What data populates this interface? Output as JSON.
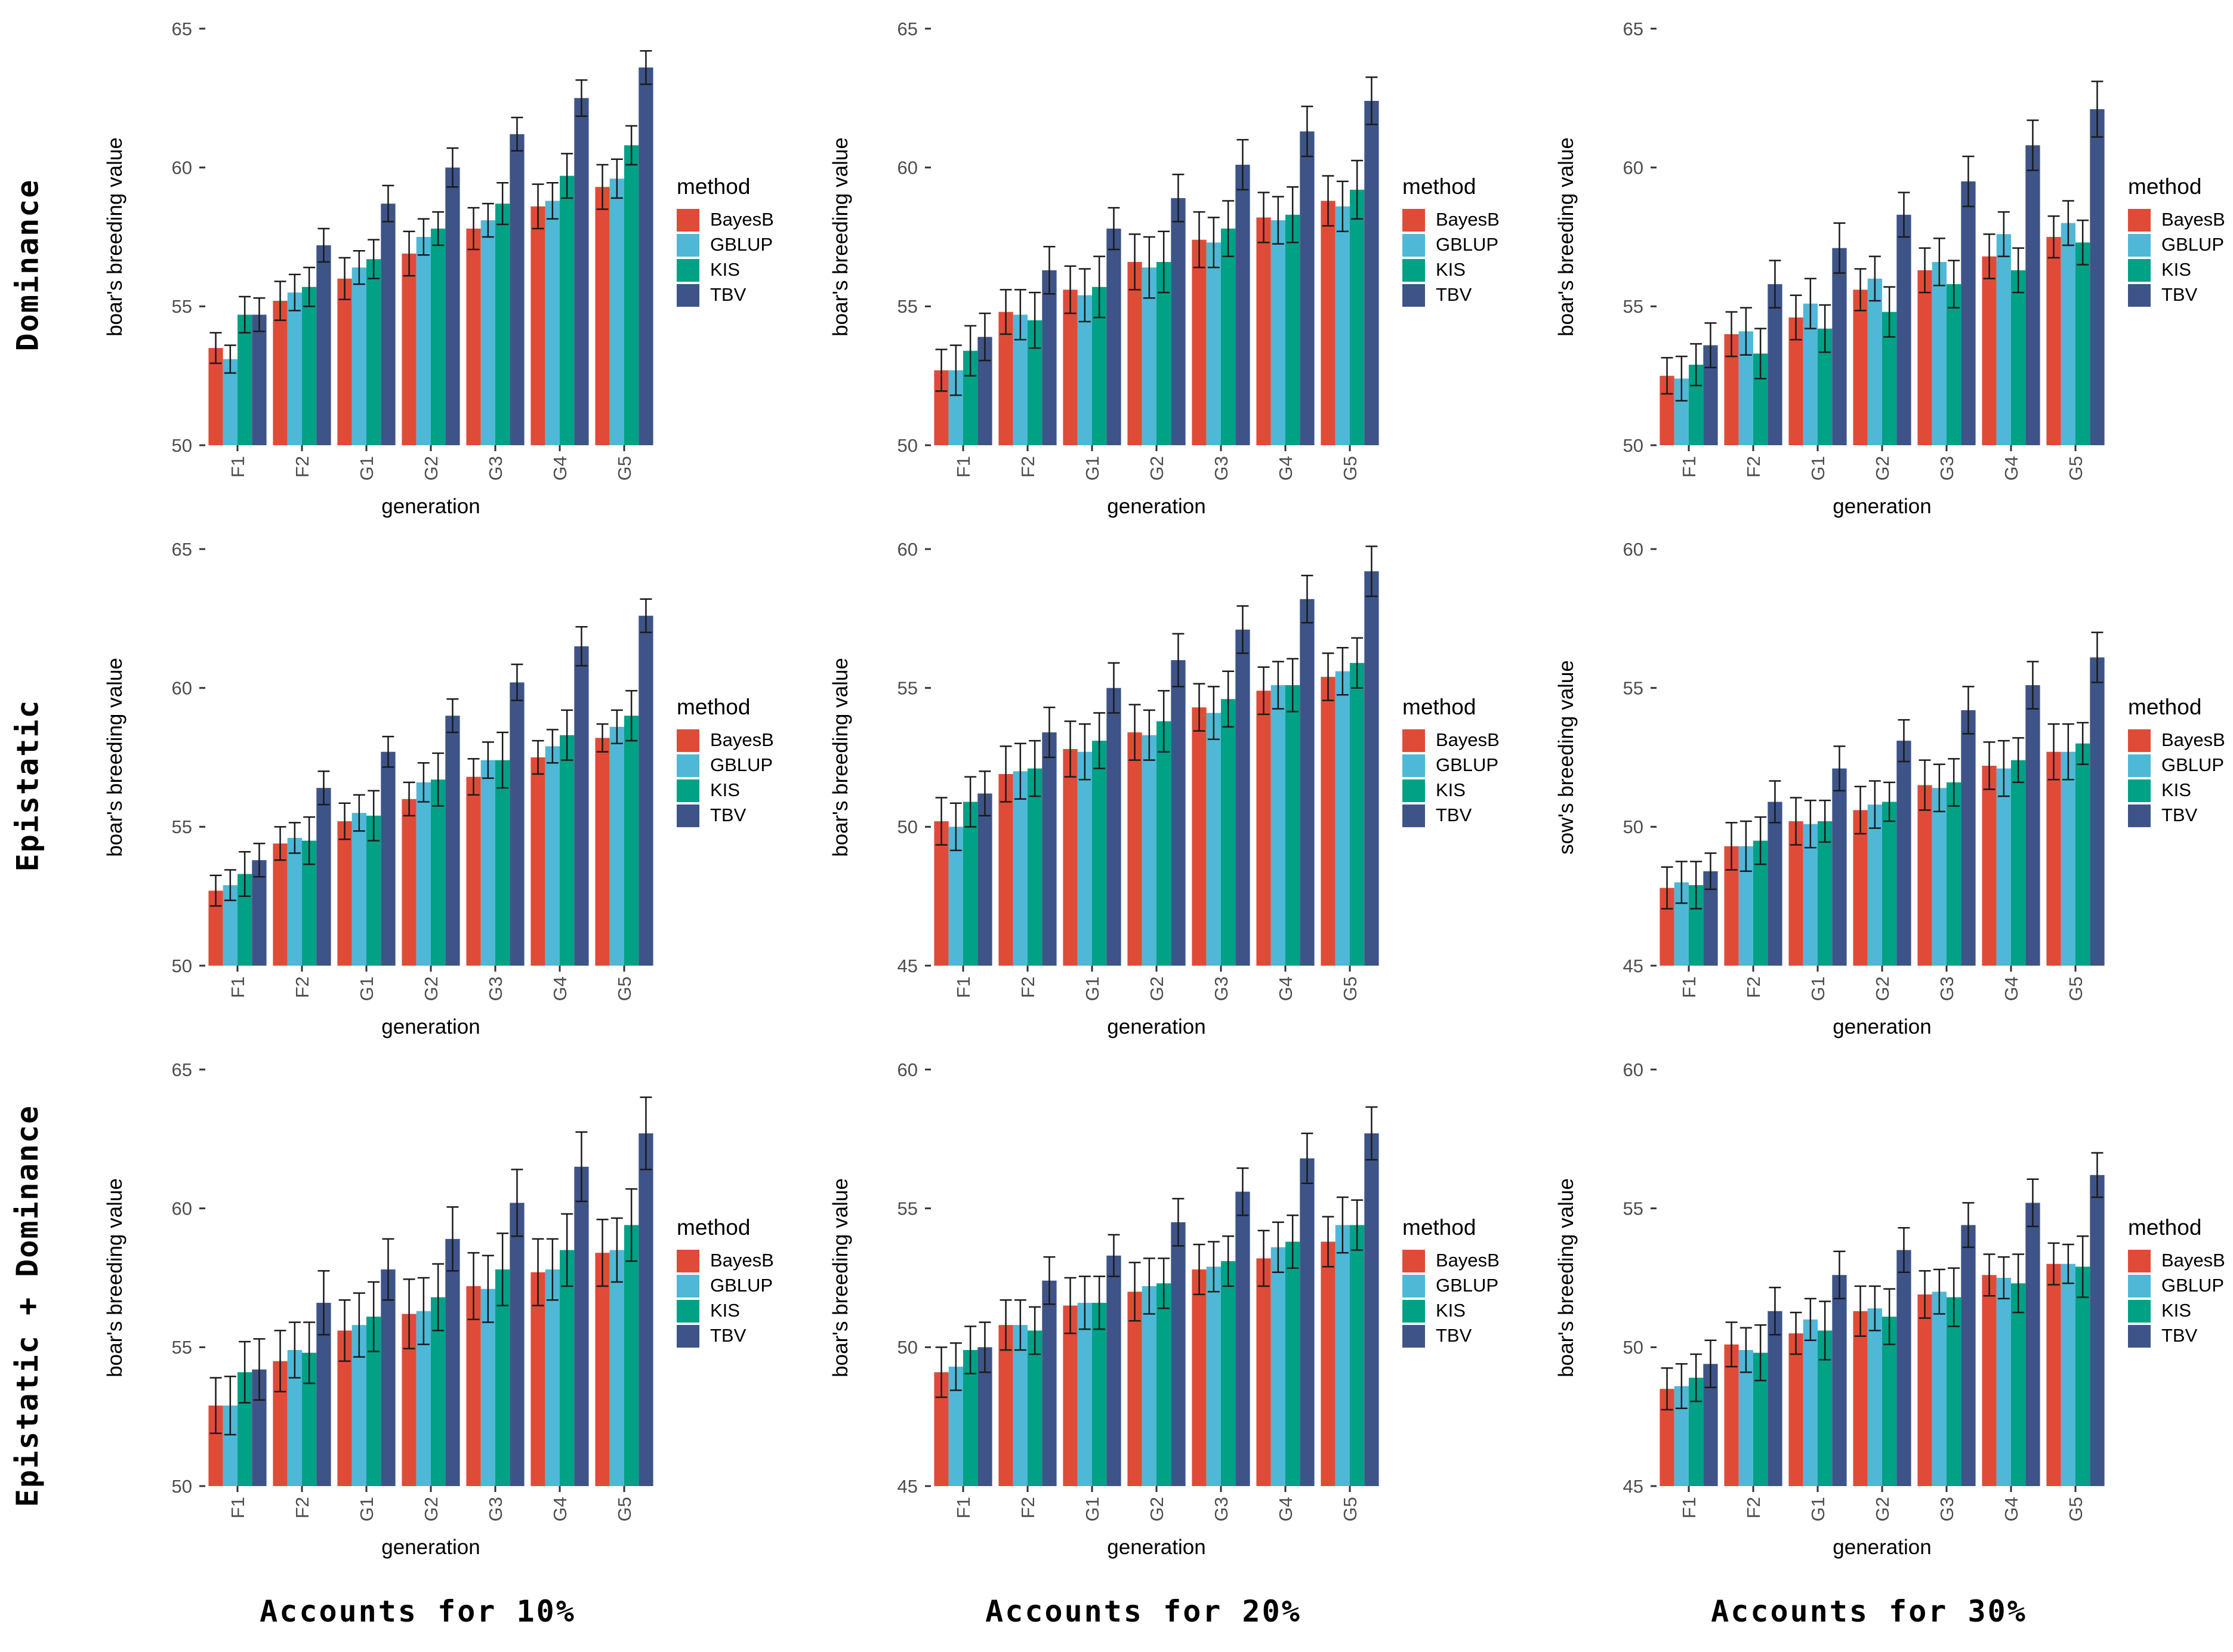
{
  "chart_data": {
    "type": "bar",
    "categories": [
      "F1",
      "F2",
      "G1",
      "G2",
      "G3",
      "G4",
      "G5"
    ],
    "xlabel": "generation",
    "rows": [
      {
        "label": "Dominance"
      },
      {
        "label": "Epistatic"
      },
      {
        "label": "Epistatic + Dominance"
      }
    ],
    "columns": [
      {
        "caption": "Accounts for 10%"
      },
      {
        "caption": "Accounts for 20%"
      },
      {
        "caption": "Accounts for 30%"
      }
    ],
    "legend": {
      "title": "method",
      "position": "right",
      "items": [
        {
          "name": "BayesB",
          "color": "#E04B38"
        },
        {
          "name": "GBLUP",
          "color": "#4FB8D6"
        },
        {
          "name": "KIS",
          "color": "#00A185"
        },
        {
          "name": "TBV",
          "color": "#3E5488"
        }
      ]
    },
    "style": {
      "grid": "off",
      "tick_label_color": "#4D4D4D",
      "tick_mark_color": "#333333",
      "axis_title_color": "#000000",
      "errorbar_color": "#1A1A1A",
      "panel_background": "#FFFFFF"
    },
    "panels": [
      {
        "row": "Dominance",
        "column": "Accounts for 10%",
        "ylabel": "boar's breeding value",
        "ylim": [
          50,
          65
        ],
        "yticks": [
          50,
          55,
          60,
          65
        ],
        "series": [
          {
            "name": "BayesB",
            "values": [
              53.5,
              55.2,
              56.0,
              56.9,
              57.8,
              58.6,
              59.3
            ],
            "errors": [
              0.55,
              0.7,
              0.75,
              0.8,
              0.75,
              0.8,
              0.8
            ]
          },
          {
            "name": "GBLUP",
            "values": [
              53.1,
              55.5,
              56.4,
              57.5,
              58.1,
              58.8,
              59.6
            ],
            "errors": [
              0.5,
              0.65,
              0.6,
              0.65,
              0.6,
              0.65,
              0.7
            ]
          },
          {
            "name": "KIS",
            "values": [
              54.7,
              55.7,
              56.7,
              57.8,
              58.7,
              59.7,
              60.8
            ],
            "errors": [
              0.65,
              0.7,
              0.7,
              0.6,
              0.75,
              0.8,
              0.7
            ]
          },
          {
            "name": "TBV",
            "values": [
              54.7,
              57.2,
              58.7,
              60.0,
              61.2,
              62.5,
              63.6
            ],
            "errors": [
              0.6,
              0.6,
              0.65,
              0.7,
              0.6,
              0.65,
              0.6
            ]
          }
        ]
      },
      {
        "row": "Dominance",
        "column": "Accounts for 20%",
        "ylabel": "boar's breeding value",
        "ylim": [
          50,
          65
        ],
        "yticks": [
          50,
          55,
          60,
          65
        ],
        "series": [
          {
            "name": "BayesB",
            "values": [
              52.7,
              54.8,
              55.6,
              56.6,
              57.4,
              58.2,
              58.8
            ],
            "errors": [
              0.75,
              0.8,
              0.85,
              1.0,
              1.0,
              0.9,
              0.9
            ]
          },
          {
            "name": "GBLUP",
            "values": [
              52.7,
              54.7,
              55.4,
              56.4,
              57.3,
              58.1,
              58.6
            ],
            "errors": [
              0.9,
              0.9,
              0.95,
              1.1,
              0.9,
              0.85,
              0.9
            ]
          },
          {
            "name": "KIS",
            "values": [
              53.4,
              54.5,
              55.7,
              56.6,
              57.8,
              58.3,
              59.2
            ],
            "errors": [
              0.9,
              1.0,
              1.1,
              1.1,
              1.0,
              1.0,
              1.05
            ]
          },
          {
            "name": "TBV",
            "values": [
              53.9,
              56.3,
              57.8,
              58.9,
              60.1,
              61.3,
              62.4
            ],
            "errors": [
              0.85,
              0.85,
              0.75,
              0.85,
              0.9,
              0.9,
              0.85
            ]
          }
        ]
      },
      {
        "row": "Dominance",
        "column": "Accounts for 30%",
        "ylabel": "boar's breeding value",
        "ylim": [
          50,
          65
        ],
        "yticks": [
          50,
          55,
          60,
          65
        ],
        "series": [
          {
            "name": "BayesB",
            "values": [
              52.5,
              54.0,
              54.6,
              55.6,
              56.3,
              56.8,
              57.5
            ],
            "errors": [
              0.65,
              0.8,
              0.8,
              0.75,
              0.8,
              0.8,
              0.75
            ]
          },
          {
            "name": "GBLUP",
            "values": [
              52.4,
              54.1,
              55.1,
              56.0,
              56.6,
              57.6,
              58.0
            ],
            "errors": [
              0.8,
              0.85,
              0.9,
              0.8,
              0.85,
              0.8,
              0.8
            ]
          },
          {
            "name": "KIS",
            "values": [
              52.9,
              53.3,
              54.2,
              54.8,
              55.8,
              56.3,
              57.3
            ],
            "errors": [
              0.75,
              0.9,
              0.85,
              0.9,
              0.85,
              0.8,
              0.8
            ]
          },
          {
            "name": "TBV",
            "values": [
              53.6,
              55.8,
              57.1,
              58.3,
              59.5,
              60.8,
              62.1
            ],
            "errors": [
              0.8,
              0.85,
              0.9,
              0.8,
              0.9,
              0.9,
              1.0
            ]
          }
        ]
      },
      {
        "row": "Epistatic",
        "column": "Accounts for 10%",
        "ylabel": "boar's breeding value",
        "ylim": [
          50,
          65
        ],
        "yticks": [
          50,
          55,
          60,
          65
        ],
        "series": [
          {
            "name": "BayesB",
            "values": [
              52.7,
              54.4,
              55.2,
              56.0,
              56.8,
              57.5,
              58.2
            ],
            "errors": [
              0.55,
              0.6,
              0.65,
              0.6,
              0.65,
              0.6,
              0.5
            ]
          },
          {
            "name": "GBLUP",
            "values": [
              52.9,
              54.6,
              55.5,
              56.6,
              57.4,
              57.9,
              58.6
            ],
            "errors": [
              0.55,
              0.55,
              0.65,
              0.7,
              0.65,
              0.6,
              0.6
            ]
          },
          {
            "name": "KIS",
            "values": [
              53.3,
              54.5,
              55.4,
              56.7,
              57.4,
              58.3,
              59.0
            ],
            "errors": [
              0.8,
              0.85,
              0.9,
              0.95,
              1.0,
              0.9,
              0.9
            ]
          },
          {
            "name": "TBV",
            "values": [
              53.8,
              56.4,
              57.7,
              59.0,
              60.2,
              61.5,
              62.6
            ],
            "errors": [
              0.6,
              0.6,
              0.55,
              0.6,
              0.65,
              0.7,
              0.6
            ]
          }
        ]
      },
      {
        "row": "Epistatic",
        "column": "Accounts for 20%",
        "ylabel": "boar's breeding value",
        "ylim": [
          45,
          60
        ],
        "yticks": [
          45,
          50,
          55,
          60
        ],
        "series": [
          {
            "name": "BayesB",
            "values": [
              50.2,
              51.9,
              52.8,
              53.4,
              54.3,
              54.9,
              55.4
            ],
            "errors": [
              0.85,
              1.0,
              1.0,
              1.0,
              0.85,
              0.85,
              0.85
            ]
          },
          {
            "name": "GBLUP",
            "values": [
              50.0,
              52.0,
              52.7,
              53.3,
              54.1,
              55.1,
              55.6
            ],
            "errors": [
              0.85,
              1.0,
              1.0,
              0.9,
              0.95,
              0.85,
              0.85
            ]
          },
          {
            "name": "KIS",
            "values": [
              50.9,
              52.1,
              53.1,
              53.8,
              54.6,
              55.1,
              55.9
            ],
            "errors": [
              0.9,
              1.0,
              1.0,
              1.1,
              1.0,
              0.95,
              0.9
            ]
          },
          {
            "name": "TBV",
            "values": [
              51.2,
              53.4,
              55.0,
              56.0,
              57.1,
              58.2,
              59.2
            ],
            "errors": [
              0.8,
              0.9,
              0.9,
              0.95,
              0.85,
              0.85,
              0.9
            ]
          }
        ]
      },
      {
        "row": "Epistatic",
        "column": "Accounts for 30%",
        "ylabel": "sow's breeding value",
        "ylim": [
          45,
          60
        ],
        "yticks": [
          45,
          50,
          55,
          60
        ],
        "series": [
          {
            "name": "BayesB",
            "values": [
              47.8,
              49.3,
              50.2,
              50.6,
              51.5,
              52.2,
              52.7
            ],
            "errors": [
              0.75,
              0.85,
              0.85,
              0.85,
              0.9,
              0.85,
              1.0
            ]
          },
          {
            "name": "GBLUP",
            "values": [
              48.0,
              49.3,
              50.1,
              50.8,
              51.4,
              52.1,
              52.7
            ],
            "errors": [
              0.75,
              0.9,
              0.85,
              0.85,
              0.85,
              1.0,
              1.0
            ]
          },
          {
            "name": "KIS",
            "values": [
              47.9,
              49.5,
              50.2,
              50.9,
              51.6,
              52.4,
              53.0
            ],
            "errors": [
              0.85,
              0.85,
              0.75,
              0.7,
              0.85,
              0.8,
              0.75
            ]
          },
          {
            "name": "TBV",
            "values": [
              48.4,
              50.9,
              52.1,
              53.1,
              54.2,
              55.1,
              56.1
            ],
            "errors": [
              0.65,
              0.75,
              0.8,
              0.75,
              0.85,
              0.85,
              0.9
            ]
          }
        ]
      },
      {
        "row": "Epistatic + Dominance",
        "column": "Accounts for 10%",
        "ylabel": "boar's breeding value",
        "ylim": [
          50,
          65
        ],
        "yticks": [
          50,
          55,
          60,
          65
        ],
        "series": [
          {
            "name": "BayesB",
            "values": [
              52.9,
              54.5,
              55.6,
              56.2,
              57.2,
              57.7,
              58.4
            ],
            "errors": [
              1.0,
              1.1,
              1.1,
              1.25,
              1.2,
              1.2,
              1.2
            ]
          },
          {
            "name": "GBLUP",
            "values": [
              52.9,
              54.9,
              55.8,
              56.3,
              57.1,
              57.8,
              58.5
            ],
            "errors": [
              1.05,
              1.0,
              1.15,
              1.2,
              1.2,
              1.1,
              1.15
            ]
          },
          {
            "name": "KIS",
            "values": [
              54.1,
              54.8,
              56.1,
              56.8,
              57.8,
              58.5,
              59.4
            ],
            "errors": [
              1.1,
              1.1,
              1.25,
              1.2,
              1.3,
              1.3,
              1.3
            ]
          },
          {
            "name": "TBV",
            "values": [
              54.2,
              56.6,
              57.8,
              58.9,
              60.2,
              61.5,
              62.7
            ],
            "errors": [
              1.1,
              1.15,
              1.1,
              1.15,
              1.2,
              1.25,
              1.3
            ]
          }
        ]
      },
      {
        "row": "Epistatic + Dominance",
        "column": "Accounts for 20%",
        "ylabel": "boar's breeding value",
        "ylim": [
          45,
          60
        ],
        "yticks": [
          45,
          50,
          55,
          60
        ],
        "series": [
          {
            "name": "BayesB",
            "values": [
              49.1,
              50.8,
              51.5,
              52.0,
              52.8,
              53.2,
              53.8
            ],
            "errors": [
              0.9,
              0.9,
              1.0,
              1.05,
              0.9,
              1.0,
              0.9
            ]
          },
          {
            "name": "GBLUP",
            "values": [
              49.3,
              50.8,
              51.6,
              52.2,
              52.9,
              53.6,
              54.4
            ],
            "errors": [
              0.85,
              0.9,
              0.95,
              1.0,
              0.9,
              0.9,
              1.0
            ]
          },
          {
            "name": "KIS",
            "values": [
              49.9,
              50.6,
              51.6,
              52.3,
              53.1,
              53.8,
              54.4
            ],
            "errors": [
              0.85,
              0.85,
              0.95,
              0.9,
              0.9,
              0.95,
              0.9
            ]
          },
          {
            "name": "TBV",
            "values": [
              50.0,
              52.4,
              53.3,
              54.5,
              55.6,
              56.8,
              57.7
            ],
            "errors": [
              0.9,
              0.85,
              0.75,
              0.85,
              0.85,
              0.9,
              0.95
            ]
          }
        ]
      },
      {
        "row": "Epistatic + Dominance",
        "column": "Accounts for 30%",
        "ylabel": "boar's breeding value",
        "ylim": [
          45,
          60
        ],
        "yticks": [
          45,
          50,
          55,
          60
        ],
        "series": [
          {
            "name": "BayesB",
            "values": [
              48.5,
              50.1,
              50.5,
              51.3,
              51.9,
              52.6,
              53.0
            ],
            "errors": [
              0.75,
              0.8,
              0.75,
              0.9,
              0.85,
              0.75,
              0.75
            ]
          },
          {
            "name": "GBLUP",
            "values": [
              48.6,
              49.9,
              51.0,
              51.4,
              52.0,
              52.5,
              53.0
            ],
            "errors": [
              0.8,
              0.8,
              0.75,
              0.8,
              0.8,
              0.75,
              0.7
            ]
          },
          {
            "name": "KIS",
            "values": [
              48.9,
              49.8,
              50.6,
              51.1,
              51.8,
              52.3,
              52.9
            ],
            "errors": [
              0.85,
              1.0,
              1.05,
              1.0,
              1.05,
              1.05,
              1.1
            ]
          },
          {
            "name": "TBV",
            "values": [
              49.4,
              51.3,
              52.6,
              53.5,
              54.4,
              55.2,
              56.2
            ],
            "errors": [
              0.85,
              0.85,
              0.85,
              0.8,
              0.8,
              0.85,
              0.8
            ]
          }
        ]
      }
    ]
  }
}
